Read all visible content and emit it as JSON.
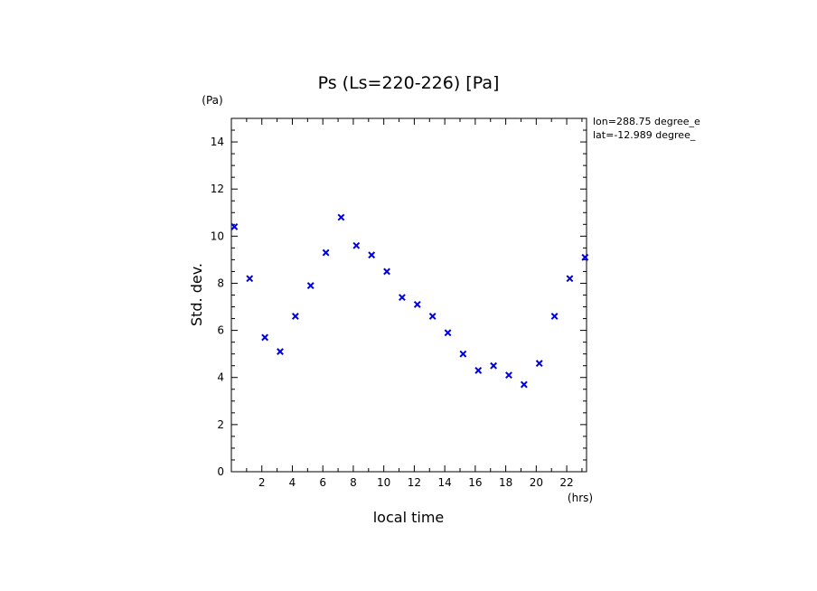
{
  "chart_data": {
    "type": "scatter",
    "title": "Ps (Ls=220-226) [Pa]",
    "xlabel": "local time",
    "ylabel": "Std. dev.",
    "xunit": "(hrs)",
    "yunit": "(Pa)",
    "xlim": [
      0,
      23.3
    ],
    "ylim": [
      0,
      15
    ],
    "xticks": [
      2,
      4,
      6,
      8,
      10,
      12,
      14,
      16,
      18,
      20,
      22
    ],
    "yticks": [
      0,
      2,
      4,
      6,
      8,
      10,
      12,
      14
    ],
    "marker": "x",
    "color": "#0000dd",
    "grid": false,
    "annotations": [
      "lon=288.75 degree_e",
      "lat=-12.989 degree_"
    ],
    "series": [
      {
        "x": [
          0.2,
          1.2,
          2.2,
          3.2,
          4.2,
          5.2,
          6.2,
          7.2,
          8.2,
          9.2,
          10.2,
          11.2,
          12.2,
          13.2,
          14.2,
          15.2,
          16.2,
          17.2,
          18.2,
          19.2,
          20.2,
          21.2,
          22.2,
          23.2
        ],
        "y": [
          10.4,
          8.2,
          5.7,
          5.1,
          6.6,
          7.9,
          9.3,
          10.8,
          9.6,
          9.2,
          8.5,
          7.4,
          7.1,
          6.6,
          5.9,
          5.0,
          4.3,
          4.5,
          4.1,
          3.7,
          4.6,
          6.6,
          8.2,
          9.1
        ]
      }
    ]
  }
}
